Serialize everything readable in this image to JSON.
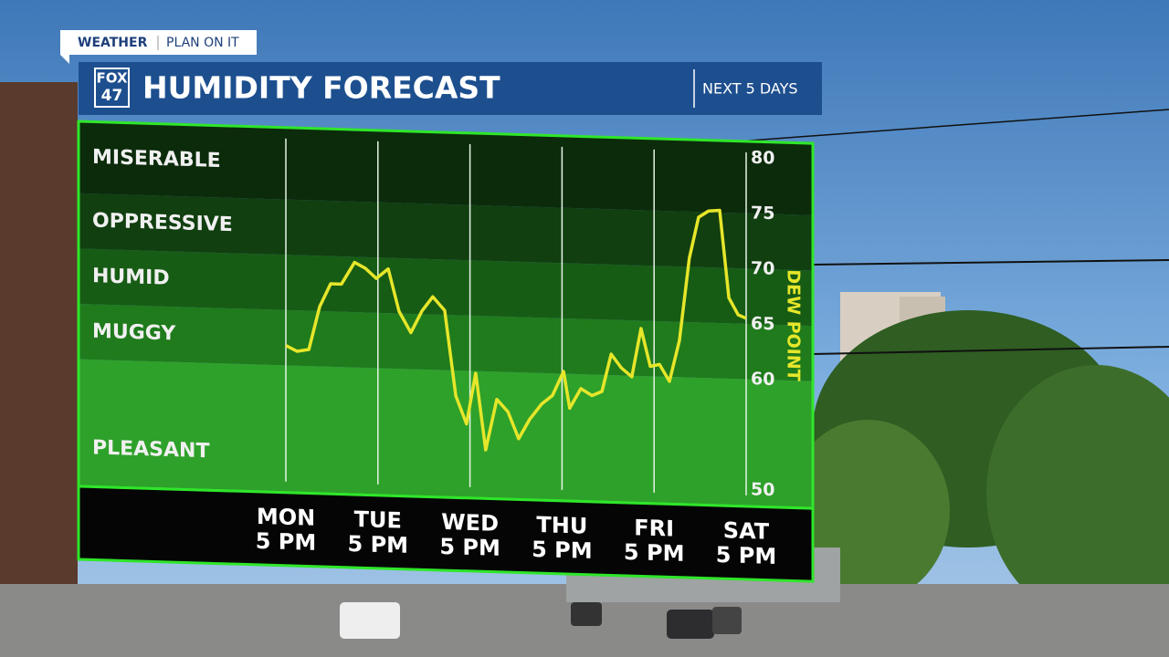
{
  "header": {
    "brand": "WEATHER",
    "tagline": "PLAN ON IT",
    "logo": [
      "FOX",
      "47"
    ]
  },
  "chart_data": {
    "type": "line",
    "title": "HUMIDITY FORECAST",
    "subtitle": "NEXT 5 DAYS",
    "y_label": "DEW POINT",
    "color": "#e6e62a",
    "x": [
      0,
      2.9,
      6,
      8.8,
      11.7,
      14.5,
      17.9,
      20.7,
      23.6,
      26.7,
      29.5,
      32.6,
      35.5,
      38.3,
      41.4,
      44.3,
      47.1,
      49.5,
      52.1,
      55,
      57.9,
      60.7,
      63.6,
      66.7,
      69.5,
      72.4,
      74,
      76.9,
      79.8,
      82.4,
      84.8,
      87.4,
      90.2,
      92.6,
      95,
      97.4,
      100,
      102.6,
      105.2,
      107.6,
      110.2,
      113.1,
      115.5,
      117.9,
      120
    ],
    "values": [
      61.8,
      61.3,
      61.5,
      65.4,
      67.5,
      67.5,
      69.5,
      69,
      68.1,
      69,
      65.2,
      63.3,
      65.3,
      66.6,
      65.4,
      57.7,
      55.2,
      59.8,
      52.9,
      57.5,
      56.4,
      54,
      55.8,
      57.2,
      58,
      60.2,
      56.9,
      58.7,
      58.1,
      58.5,
      61.9,
      60.7,
      59.9,
      64.3,
      60.9,
      61.1,
      59.6,
      63.3,
      70.8,
      74.5,
      75.1,
      75.2,
      67.3,
      65.8,
      65.5
    ],
    "xlim": [
      0,
      120
    ],
    "xticks": [
      {
        "value": 0,
        "label": [
          "MON",
          "5 PM"
        ]
      },
      {
        "value": 24,
        "label": [
          "TUE",
          "5 PM"
        ]
      },
      {
        "value": 48,
        "label": [
          "WED",
          "5 PM"
        ]
      },
      {
        "value": 72,
        "label": [
          "THU",
          "5 PM"
        ]
      },
      {
        "value": 96,
        "label": [
          "FRI",
          "5 PM"
        ]
      },
      {
        "value": 120,
        "label": [
          "SAT",
          "5 PM"
        ]
      }
    ],
    "ylim": [
      48.5,
      81.5
    ],
    "yticks": [
      50,
      60,
      65,
      70,
      75,
      80
    ],
    "band_edges": [
      60,
      65,
      70,
      75
    ],
    "bands": [
      {
        "label": "PLEASANT",
        "color": "#2ea12a"
      },
      {
        "label": "MUGGY",
        "color": "#1f7b1c"
      },
      {
        "label": "HUMID",
        "color": "#175c15"
      },
      {
        "label": "OPPRESSIVE",
        "color": "#113f10"
      },
      {
        "label": "MISERABLE",
        "color": "#0b2b0b"
      }
    ]
  }
}
